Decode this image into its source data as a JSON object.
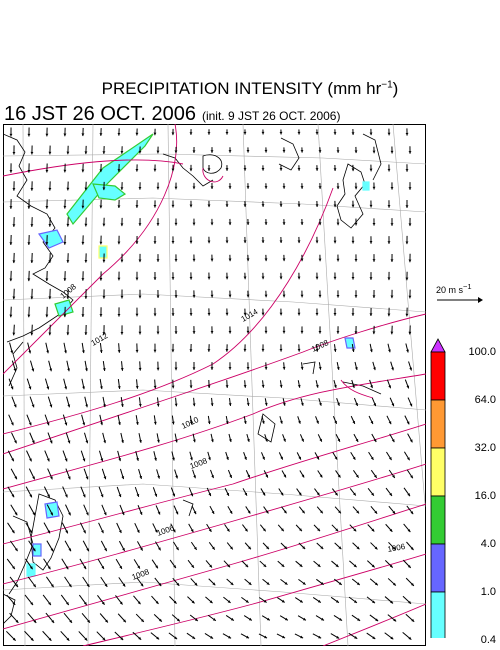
{
  "title": {
    "main": "PRECIPITATION INTENSITY (mm hr",
    "exponent": "−1",
    "close": ")"
  },
  "subtitle": {
    "valid_time": "16 JST 26 OCT. 2006",
    "init_time": "(init. 9 JST 26 OCT. 2006)"
  },
  "wind_scale": {
    "label_prefix": "20 m s",
    "label_exponent": "−1"
  },
  "colorbar": {
    "levels": [
      "100.0",
      "64.0",
      "32.0",
      "16.0",
      "4.0",
      "1.0",
      "0.4"
    ],
    "colors": [
      "#ff0000",
      "#ff9933",
      "#ffff66",
      "#33cc33",
      "#6666ff",
      "#66ffff"
    ],
    "over_color": "#cc33ff",
    "under_color": "#ffffff"
  },
  "isobar_labels": [
    "1014",
    "1012",
    "1010",
    "1008",
    "1006",
    "1008",
    "1006",
    "1008",
    "1008"
  ],
  "colors": {
    "isobar": "#cc0066",
    "coast": "#000000",
    "grid": "#aaaaaa",
    "arrow": "#000000"
  }
}
